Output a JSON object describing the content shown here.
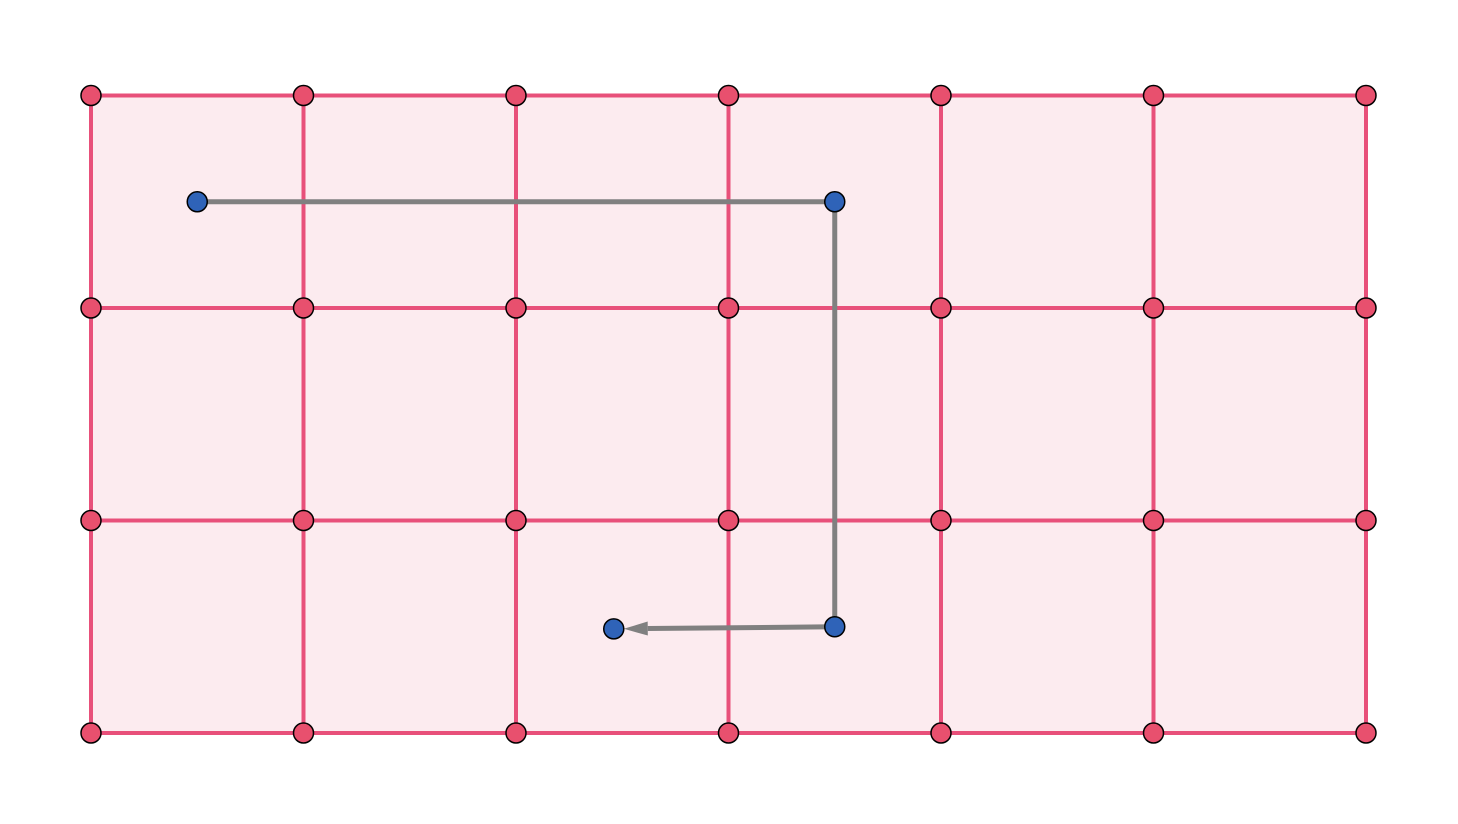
{
  "diagram": {
    "grid": {
      "columns": 6,
      "rows": 3
    },
    "colors": {
      "grid_line": "#e8507a",
      "grid_fill": "#fcebef",
      "grid_point": "#e8506e",
      "path_point": "#2f63b8",
      "path_line": "#808080",
      "point_stroke": "#000000"
    },
    "path_points": [
      {
        "x": 0.5,
        "y": 2.5
      },
      {
        "x": 3.5,
        "y": 2.5
      },
      {
        "x": 3.5,
        "y": 0.5
      },
      {
        "x": 2.46,
        "y": 0.49
      }
    ],
    "path_end": "arrow"
  }
}
